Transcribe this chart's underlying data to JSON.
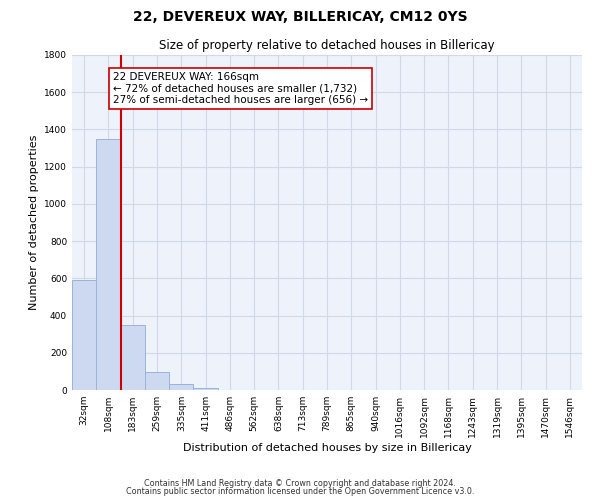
{
  "title": "22, DEVEREUX WAY, BILLERICAY, CM12 0YS",
  "subtitle": "Size of property relative to detached houses in Billericay",
  "xlabel": "Distribution of detached houses by size in Billericay",
  "ylabel": "Number of detached properties",
  "bin_labels": [
    "32sqm",
    "108sqm",
    "183sqm",
    "259sqm",
    "335sqm",
    "411sqm",
    "486sqm",
    "562sqm",
    "638sqm",
    "713sqm",
    "789sqm",
    "865sqm",
    "940sqm",
    "1016sqm",
    "1092sqm",
    "1168sqm",
    "1243sqm",
    "1319sqm",
    "1395sqm",
    "1470sqm",
    "1546sqm"
  ],
  "bar_heights": [
    590,
    1350,
    350,
    95,
    30,
    12,
    0,
    0,
    0,
    0,
    0,
    0,
    0,
    0,
    0,
    0,
    0,
    0,
    0,
    0,
    0
  ],
  "bar_color": "#ccd9f0",
  "bar_edge_color": "#99b3d9",
  "ylim": [
    0,
    1800
  ],
  "yticks": [
    0,
    200,
    400,
    600,
    800,
    1000,
    1200,
    1400,
    1600,
    1800
  ],
  "property_line_x": 1.5,
  "property_line_color": "#cc0000",
  "annotation_title": "22 DEVEREUX WAY: 166sqm",
  "annotation_line1": "← 72% of detached houses are smaller (1,732)",
  "annotation_line2": "27% of semi-detached houses are larger (656) →",
  "footer_line1": "Contains HM Land Registry data © Crown copyright and database right 2024.",
  "footer_line2": "Contains public sector information licensed under the Open Government Licence v3.0.",
  "grid_color": "#d0d8ec",
  "title_fontsize": 10,
  "subtitle_fontsize": 8.5,
  "axis_label_fontsize": 8,
  "tick_fontsize": 6.5,
  "footer_fontsize": 5.8,
  "annot_fontsize": 7.5
}
